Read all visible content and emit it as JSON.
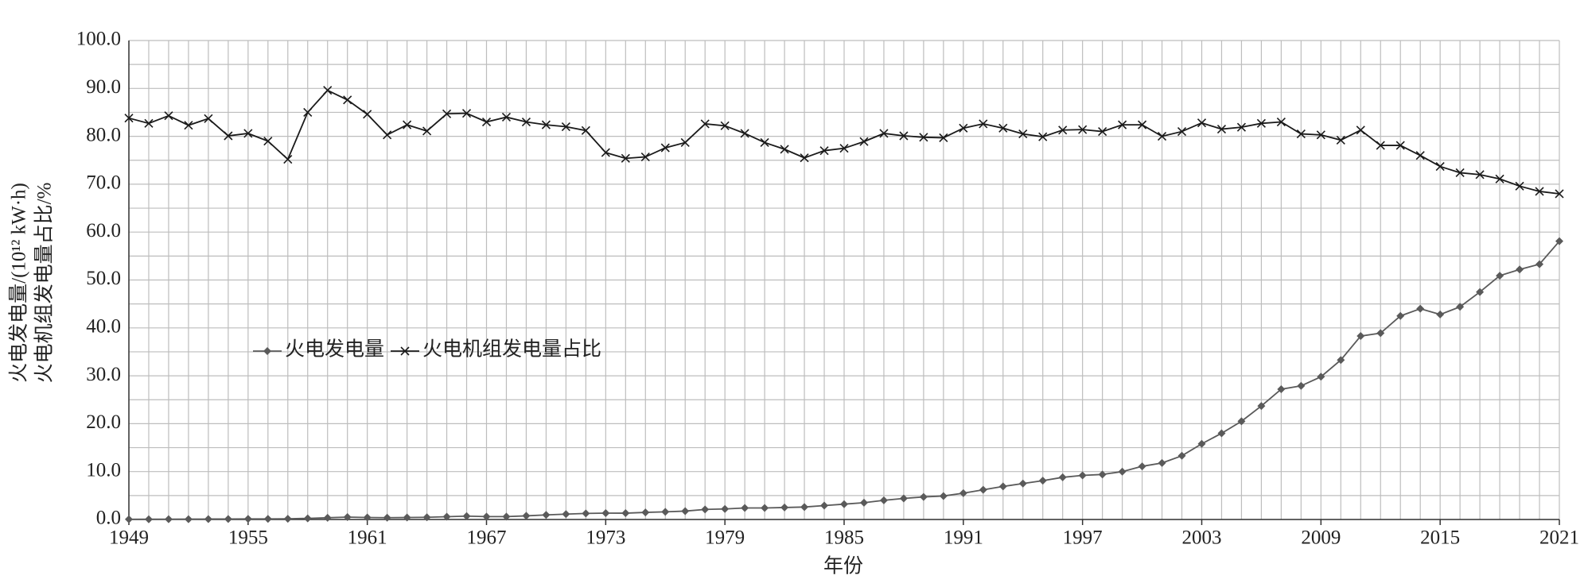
{
  "chart_data": {
    "type": "line",
    "xlabel": "年份",
    "ylabel": [
      "火电发电量/(10¹² kW·h)",
      "火电机组发电量占比/%"
    ],
    "x": [
      1949,
      1950,
      1951,
      1952,
      1953,
      1954,
      1955,
      1956,
      1957,
      1958,
      1959,
      1960,
      1961,
      1962,
      1963,
      1964,
      1965,
      1966,
      1967,
      1968,
      1969,
      1970,
      1971,
      1972,
      1973,
      1974,
      1975,
      1976,
      1977,
      1978,
      1979,
      1980,
      1981,
      1982,
      1983,
      1984,
      1985,
      1986,
      1987,
      1988,
      1989,
      1990,
      1991,
      1992,
      1993,
      1994,
      1995,
      1996,
      1997,
      1998,
      1999,
      2000,
      2001,
      2002,
      2003,
      2004,
      2005,
      2006,
      2007,
      2008,
      2009,
      2010,
      2011,
      2012,
      2013,
      2014,
      2015,
      2016,
      2017,
      2018,
      2019,
      2020,
      2021
    ],
    "series": [
      {
        "name": "火电发电量",
        "color": "#5a5a5a",
        "marker": "diamond",
        "values": [
          0.04,
          0.05,
          0.06,
          0.07,
          0.09,
          0.1,
          0.12,
          0.12,
          0.15,
          0.23,
          0.36,
          0.5,
          0.41,
          0.37,
          0.41,
          0.45,
          0.58,
          0.7,
          0.6,
          0.6,
          0.76,
          0.95,
          1.12,
          1.27,
          1.33,
          1.32,
          1.48,
          1.59,
          1.75,
          2.1,
          2.2,
          2.4,
          2.4,
          2.5,
          2.6,
          2.9,
          3.2,
          3.5,
          4.0,
          4.4,
          4.7,
          4.9,
          5.5,
          6.2,
          6.9,
          7.5,
          8.1,
          8.8,
          9.2,
          9.4,
          10.0,
          11.1,
          11.8,
          13.3,
          15.8,
          18.0,
          20.5,
          23.7,
          27.2,
          27.9,
          29.8,
          33.3,
          38.3,
          38.9,
          42.5,
          44.0,
          42.8,
          44.4,
          47.5,
          50.9,
          52.2,
          53.3,
          58.1
        ]
      },
      {
        "name": "火电机组发电量占比",
        "color": "#1a1a1a",
        "marker": "x",
        "values": [
          83.8,
          82.7,
          84.3,
          82.3,
          83.7,
          80.1,
          80.6,
          79.0,
          75.2,
          85.0,
          89.6,
          87.6,
          84.6,
          80.3,
          82.4,
          81.1,
          84.7,
          84.8,
          83.0,
          84.0,
          83.0,
          82.4,
          82.0,
          81.2,
          76.6,
          75.4,
          75.7,
          77.6,
          78.7,
          82.6,
          82.2,
          80.6,
          78.7,
          77.3,
          75.5,
          77.0,
          77.5,
          78.9,
          80.6,
          80.1,
          79.8,
          79.7,
          81.7,
          82.6,
          81.7,
          80.5,
          79.9,
          81.3,
          81.4,
          81.0,
          82.4,
          82.4,
          80.0,
          81.0,
          82.8,
          81.5,
          81.9,
          82.7,
          83.0,
          80.5,
          80.3,
          79.2,
          81.3,
          78.1,
          78.1,
          76.0,
          73.7,
          72.4,
          72.0,
          71.1,
          69.6,
          68.5,
          68.0
        ]
      }
    ],
    "xlim": [
      1949,
      2021
    ],
    "xticks": [
      1949,
      1955,
      1961,
      1967,
      1973,
      1979,
      1985,
      1991,
      1997,
      2003,
      2009,
      2015,
      2021
    ],
    "ylim": [
      0,
      100
    ],
    "yticks": [
      {
        "value": 0,
        "label": "0.0"
      },
      {
        "value": 10,
        "label": "10.0"
      },
      {
        "value": 20,
        "label": "20.0"
      },
      {
        "value": 30,
        "label": "30.0"
      },
      {
        "value": 40,
        "label": "40.0"
      },
      {
        "value": 50,
        "label": "50.0"
      },
      {
        "value": 60,
        "label": "60.0"
      },
      {
        "value": 70,
        "label": "70.0"
      },
      {
        "value": 80,
        "label": "80.0"
      },
      {
        "value": 90,
        "label": "90.0"
      },
      {
        "value": 100,
        "label": "100.0"
      }
    ],
    "grid": true,
    "legend": "center-left"
  }
}
